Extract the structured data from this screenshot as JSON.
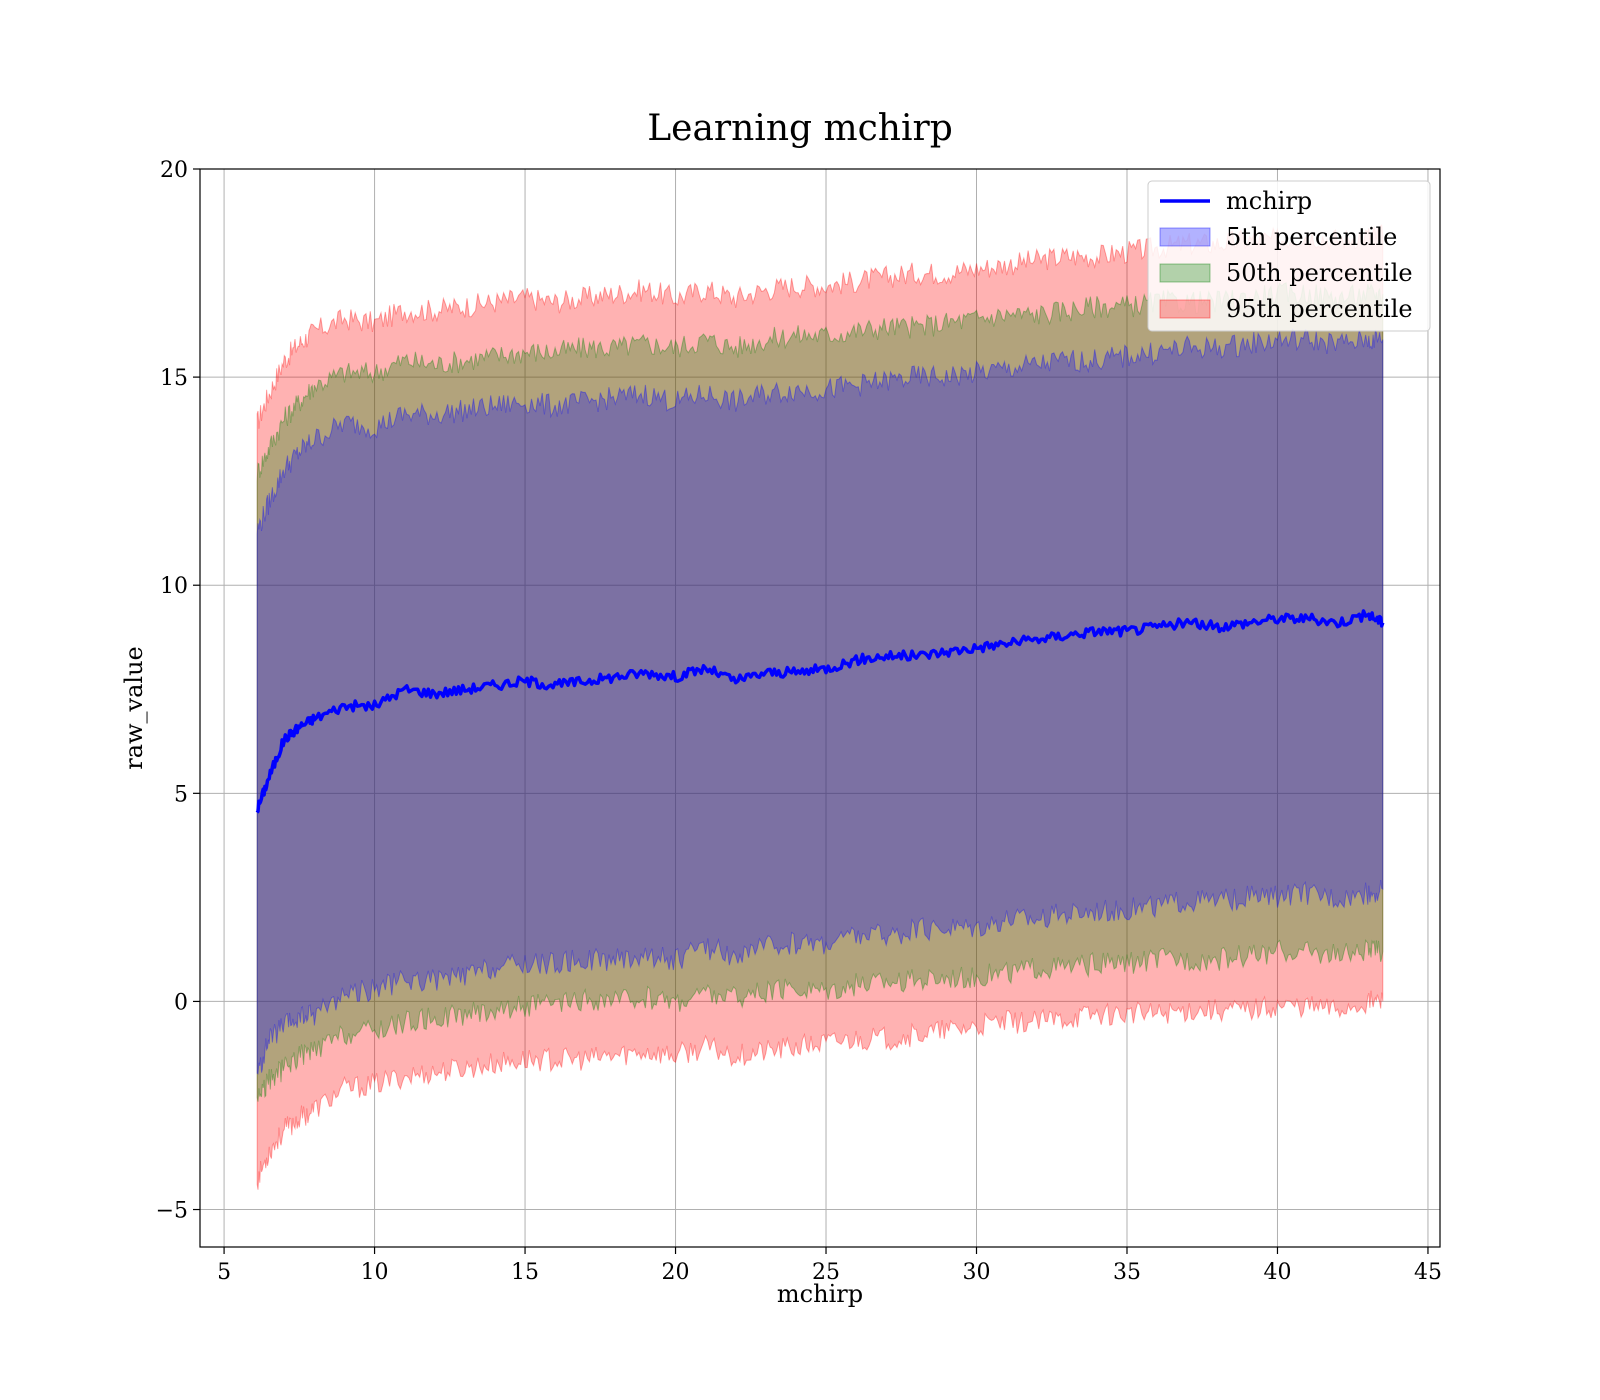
{
  "chart_data": {
    "type": "area",
    "title": "Learning mchirp",
    "xlabel": "mchirp",
    "ylabel": "raw_value",
    "xlim": [
      4.2,
      45.4
    ],
    "ylim": [
      -5.9,
      20
    ],
    "x_ticks": [
      5,
      10,
      15,
      20,
      25,
      30,
      35,
      40,
      45
    ],
    "y_ticks": [
      -5,
      0,
      5,
      10,
      15,
      20
    ],
    "y_tick_labels": [
      "−5",
      "0",
      "5",
      "10",
      "15",
      "20"
    ],
    "grid": true,
    "legend_position": "top-right",
    "x": [
      6.1,
      6.5,
      7,
      7.5,
      8,
      9,
      10,
      11,
      12,
      13,
      14,
      15,
      16,
      17,
      18,
      19,
      20,
      21,
      22,
      23,
      24,
      25,
      26,
      27,
      28,
      29,
      30,
      31,
      32,
      33,
      34,
      35,
      36,
      37,
      38,
      39,
      40,
      41,
      42,
      43,
      43.5
    ],
    "series": [
      {
        "name": "mchirp",
        "kind": "line",
        "color": "#0000ff",
        "values": [
          4.6,
          5.4,
          6.3,
          6.6,
          6.8,
          7.1,
          7.1,
          7.5,
          7.4,
          7.5,
          7.6,
          7.7,
          7.6,
          7.7,
          7.8,
          7.9,
          7.8,
          8.0,
          7.7,
          7.9,
          7.9,
          8.0,
          8.2,
          8.3,
          8.3,
          8.4,
          8.5,
          8.6,
          8.7,
          8.8,
          8.9,
          8.9,
          9.0,
          9.1,
          9.0,
          9.1,
          9.2,
          9.2,
          9.1,
          9.3,
          9.1
        ]
      },
      {
        "name": "5th percentile",
        "kind": "band",
        "color": "#0000ff",
        "alpha": 0.3,
        "lower": [
          -1.8,
          -0.9,
          -0.6,
          -0.4,
          -0.3,
          0.2,
          0.3,
          0.5,
          0.5,
          0.6,
          0.8,
          0.9,
          0.9,
          1.0,
          1.0,
          1.1,
          1.0,
          1.3,
          1.1,
          1.3,
          1.4,
          1.4,
          1.6,
          1.6,
          1.7,
          1.8,
          1.8,
          2.0,
          2.0,
          2.1,
          2.2,
          2.2,
          2.3,
          2.4,
          2.4,
          2.5,
          2.5,
          2.6,
          2.5,
          2.6,
          2.7
        ],
        "upper": [
          11.3,
          12.0,
          12.8,
          13.2,
          13.5,
          13.9,
          13.8,
          14.1,
          14.1,
          14.2,
          14.3,
          14.4,
          14.3,
          14.4,
          14.5,
          14.6,
          14.4,
          14.6,
          14.4,
          14.6,
          14.7,
          14.7,
          14.8,
          14.9,
          15.0,
          15.0,
          15.1,
          15.2,
          15.3,
          15.4,
          15.4,
          15.5,
          15.6,
          15.7,
          15.7,
          15.8,
          15.9,
          15.9,
          15.8,
          15.9,
          15.9
        ]
      },
      {
        "name": "50th percentile",
        "kind": "band",
        "color": "#008000",
        "alpha": 0.3,
        "lower": [
          -2.3,
          -1.9,
          -1.6,
          -1.3,
          -1.2,
          -0.8,
          -0.7,
          -0.5,
          -0.4,
          -0.3,
          -0.2,
          -0.1,
          -0.1,
          0.0,
          0.0,
          0.1,
          0.0,
          0.2,
          0.1,
          0.2,
          0.3,
          0.3,
          0.4,
          0.5,
          0.5,
          0.6,
          0.6,
          0.7,
          0.8,
          0.8,
          0.9,
          0.9,
          1.0,
          1.0,
          1.0,
          1.1,
          1.2,
          1.2,
          1.1,
          1.2,
          1.2
        ],
        "upper": [
          12.7,
          13.3,
          14.0,
          14.4,
          14.8,
          15.1,
          15.1,
          15.4,
          15.3,
          15.4,
          15.5,
          15.6,
          15.6,
          15.7,
          15.7,
          15.8,
          15.7,
          15.9,
          15.7,
          15.9,
          16.0,
          16.0,
          16.1,
          16.2,
          16.2,
          16.3,
          16.4,
          16.5,
          16.5,
          16.6,
          16.7,
          16.7,
          16.8,
          16.8,
          16.8,
          16.9,
          17.0,
          17.0,
          16.9,
          17.0,
          17.0
        ]
      },
      {
        "name": "95th percentile",
        "kind": "band",
        "color": "#ff0000",
        "alpha": 0.3,
        "lower": [
          -4.3,
          -3.6,
          -3.1,
          -2.8,
          -2.6,
          -2.1,
          -2.0,
          -1.8,
          -1.7,
          -1.6,
          -1.5,
          -1.4,
          -1.4,
          -1.4,
          -1.3,
          -1.2,
          -1.3,
          -1.1,
          -1.3,
          -1.2,
          -1.1,
          -1.0,
          -0.9,
          -0.9,
          -0.8,
          -0.7,
          -0.6,
          -0.5,
          -0.5,
          -0.4,
          -0.3,
          -0.3,
          -0.3,
          -0.2,
          -0.2,
          -0.2,
          -0.1,
          -0.1,
          -0.2,
          0.0,
          0.0
        ],
        "upper": [
          13.9,
          14.6,
          15.4,
          15.8,
          16.1,
          16.4,
          16.3,
          16.6,
          16.6,
          16.7,
          16.8,
          16.9,
          16.8,
          16.9,
          17.0,
          17.1,
          16.9,
          17.1,
          16.9,
          17.1,
          17.2,
          17.2,
          17.3,
          17.4,
          17.5,
          17.5,
          17.6,
          17.7,
          17.8,
          17.9,
          17.9,
          18.0,
          18.1,
          18.2,
          18.2,
          18.3,
          18.3,
          18.4,
          18.3,
          18.4,
          18.4
        ]
      }
    ]
  }
}
